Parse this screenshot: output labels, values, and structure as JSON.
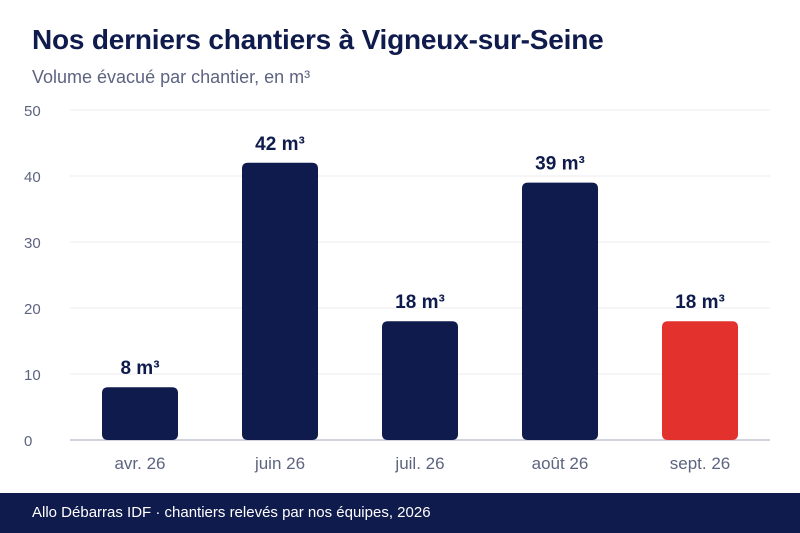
{
  "header": {
    "title": "Nos derniers chantiers à Vigneux-sur-Seine",
    "subtitle": "Volume évacué par chantier, en m³"
  },
  "footer": {
    "text": "Allo Débarras IDF · chantiers relevés par nos équipes, 2026"
  },
  "colors": {
    "bar": "#0f1b4c",
    "highlight": "#e3312d",
    "footer": "#0f1b4c"
  },
  "chart_data": {
    "type": "bar",
    "title": "Nos derniers chantiers à Vigneux-sur-Seine",
    "subtitle": "Volume évacué par chantier, en m³",
    "categories": [
      "avr. 26",
      "juin 26",
      "juil. 26",
      "août 26",
      "sept. 26"
    ],
    "values": [
      8,
      42,
      18,
      39,
      18
    ],
    "data_labels": [
      "8 m³",
      "42 m³",
      "18 m³",
      "39 m³",
      "18 m³"
    ],
    "highlight_index": 4,
    "ylim": [
      0,
      50
    ],
    "yticks": [
      0,
      10,
      20,
      30,
      40,
      50
    ],
    "grid": true,
    "legend": "none"
  }
}
